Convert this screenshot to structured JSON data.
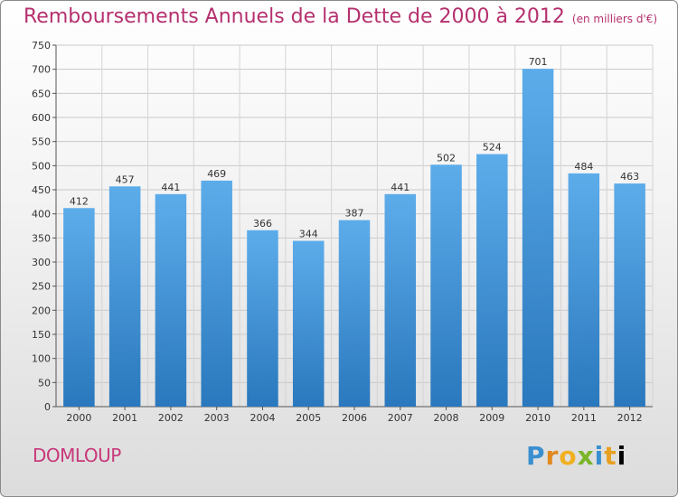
{
  "chart_data": {
    "type": "bar",
    "title": "Remboursements Annuels de la Dette de 2000 à 2012",
    "unit_label": "(en milliers d'€)",
    "categories": [
      "2000",
      "2001",
      "2002",
      "2003",
      "2004",
      "2005",
      "2006",
      "2007",
      "2008",
      "2009",
      "2010",
      "2011",
      "2012"
    ],
    "values": [
      412,
      457,
      441,
      469,
      366,
      344,
      387,
      441,
      502,
      524,
      701,
      484,
      463
    ],
    "yticks": [
      0,
      50,
      100,
      150,
      200,
      250,
      300,
      350,
      400,
      450,
      500,
      550,
      600,
      650,
      700,
      750
    ],
    "ylim": [
      0,
      750
    ],
    "xlabel": "",
    "ylabel": "",
    "grid": true,
    "bar_color": "#3d8fd6"
  },
  "commune": "DOMLOUP",
  "logo_text": "Proxiti"
}
